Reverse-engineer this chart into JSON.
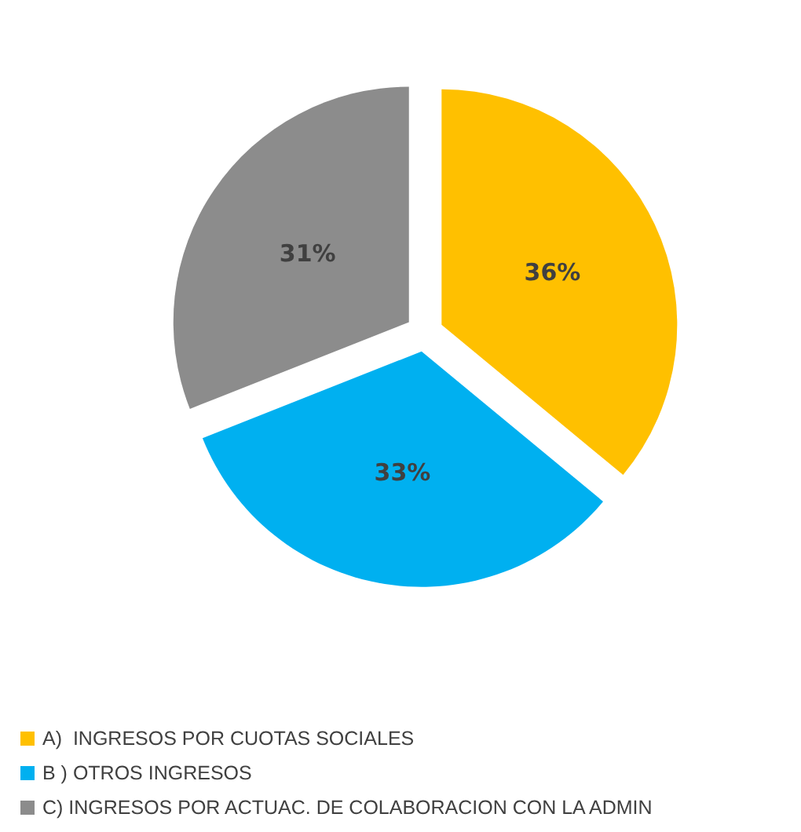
{
  "chart_data": {
    "type": "pie",
    "categories": [
      "A)  INGRESOS POR CUOTAS SOCIALES",
      "B ) OTROS INGRESOS",
      "C) INGRESOS POR ACTUAC. DE COLABORACION CON LA ADMIN"
    ],
    "values": [
      36,
      33,
      31
    ],
    "colors": [
      "#ffc000",
      "#00b0f0",
      "#8c8c8c"
    ],
    "value_labels": [
      "36%",
      "33%",
      "31%"
    ],
    "legend": "bottom"
  }
}
